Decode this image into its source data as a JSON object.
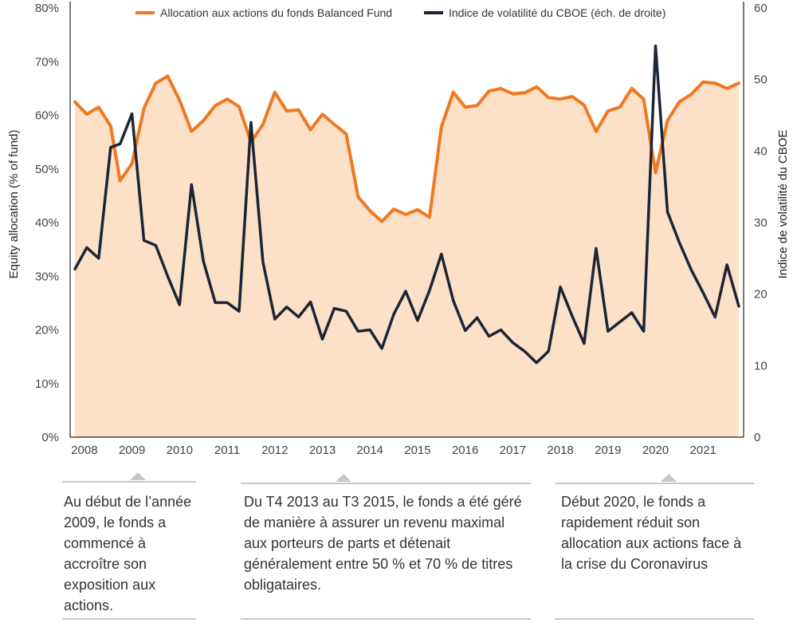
{
  "chart_data": {
    "type": "line",
    "title": "",
    "ylabel": "Equity allocation (% of fund)",
    "y2label": "Indice de volatilité du CBOE",
    "ylim": [
      0,
      80
    ],
    "y2lim": [
      0,
      60
    ],
    "y_ticks": [
      "0%",
      "10%",
      "20%",
      "30%",
      "40%",
      "50%",
      "60%",
      "70%",
      "80%"
    ],
    "y2_ticks": [
      "0",
      "10",
      "20",
      "30",
      "40",
      "50",
      "60"
    ],
    "x_ticks": [
      "2008",
      "2009",
      "2010",
      "2011",
      "2012",
      "2013",
      "2014",
      "2015",
      "2016",
      "2017",
      "2018",
      "2019",
      "2020",
      "2021"
    ],
    "xlim": [
      2007.7,
      2021.85
    ],
    "x": [
      2007.8,
      2008.05,
      2008.3,
      2008.55,
      2008.75,
      2009.0,
      2009.25,
      2009.5,
      2009.75,
      2010.0,
      2010.25,
      2010.5,
      2010.75,
      2011.0,
      2011.25,
      2011.5,
      2011.75,
      2012.0,
      2012.25,
      2012.5,
      2012.75,
      2013.0,
      2013.25,
      2013.5,
      2013.75,
      2014.0,
      2014.25,
      2014.5,
      2014.75,
      2015.0,
      2015.25,
      2015.5,
      2015.75,
      2016.0,
      2016.25,
      2016.5,
      2016.75,
      2017.0,
      2017.25,
      2017.5,
      2017.75,
      2018.0,
      2018.25,
      2018.5,
      2018.75,
      2019.0,
      2019.25,
      2019.5,
      2019.75,
      2020.0,
      2020.25,
      2020.5,
      2020.75,
      2021.0,
      2021.25,
      2021.5,
      2021.75
    ],
    "series": [
      {
        "name": "Allocation aux actions du fonds Balanced Fund",
        "axis": "left",
        "color": "#f07820",
        "values": [
          62.5,
          60.2,
          61.5,
          58.0,
          47.8,
          51.0,
          61.3,
          66.0,
          67.3,
          62.8,
          57.0,
          59.0,
          61.8,
          63.0,
          61.6,
          55.0,
          58.3,
          64.3,
          60.8,
          61.0,
          57.3,
          60.2,
          58.3,
          56.5,
          44.8,
          42.2,
          40.2,
          42.5,
          41.5,
          42.4,
          41.0,
          57.8,
          64.3,
          61.5,
          61.8,
          64.5,
          65.0,
          64.0,
          64.2,
          65.3,
          63.3,
          63.0,
          63.5,
          61.9,
          57.0,
          60.8,
          61.5,
          65.0,
          63.0,
          49.3,
          59.0,
          62.5,
          63.9,
          66.2,
          66.0,
          65.0,
          66.0
        ]
      },
      {
        "name": "Indice de volatilité du CBOE (éch. de droite)",
        "axis": "right",
        "color": "#1c2533",
        "values": [
          23.5,
          26.5,
          25.0,
          40.5,
          41.0,
          45.2,
          27.5,
          26.8,
          22.5,
          18.5,
          35.3,
          24.6,
          18.8,
          18.8,
          17.6,
          44.0,
          24.5,
          16.5,
          18.2,
          16.8,
          18.9,
          13.7,
          18.0,
          17.6,
          14.8,
          15.0,
          12.4,
          17.2,
          20.4,
          16.3,
          20.5,
          25.6,
          19.1,
          14.9,
          16.7,
          14.1,
          15.0,
          13.2,
          12.0,
          10.4,
          12.0,
          21.0,
          16.9,
          13.1,
          26.4,
          14.8,
          16.1,
          17.4,
          14.8,
          54.7,
          31.5,
          27.2,
          23.4,
          20.2,
          16.8,
          24.1,
          18.3
        ]
      }
    ],
    "legend_position": "top-center",
    "grid": false
  },
  "annotations": [
    {
      "text": "Au début de l’année 2009, le fonds a commencé à accroître son exposition aux actions."
    },
    {
      "text": "Du T4 2013 au T3 2015, le fonds a été géré de manière à assurer un revenu maximal aux porteurs de parts et détenait généralement entre 50 % et 70 % de titres obligataires."
    },
    {
      "text": "Début 2020, le fonds a rapidement réduit son allocation aux actions face à la crise du Coronavirus"
    }
  ],
  "colors": {
    "area_fill": "#fde0c8",
    "allocation_line": "#f07820",
    "vix_line": "#1c2533",
    "annotation_rule": "#c8c8c8"
  }
}
